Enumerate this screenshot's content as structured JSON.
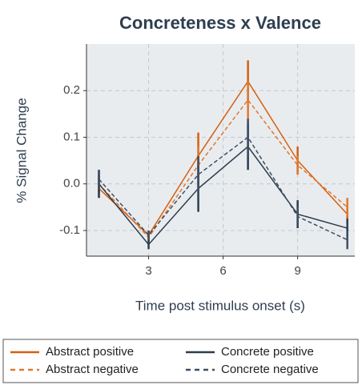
{
  "chart_data": {
    "type": "line",
    "title": "Concreteness x Valence",
    "x_label": "Time post stimulus onset (s)",
    "y_label": "% Signal Change",
    "x": [
      1,
      3,
      5,
      7,
      9,
      11
    ],
    "series": [
      {
        "name": "Abstract positive",
        "color": "#d4600f",
        "linestyle": "solid",
        "values": [
          -0.01,
          -0.11,
          0.06,
          0.22,
          0.05,
          -0.065
        ],
        "errors": [
          0.02,
          0.01,
          0.05,
          0.045,
          0.03,
          0.02
        ]
      },
      {
        "name": "Abstract negative",
        "color": "#e0782f",
        "linestyle": "dashed",
        "values": [
          0.0,
          -0.115,
          0.04,
          0.18,
          0.04,
          -0.05
        ],
        "errors": [
          0.02,
          0.01,
          0.04,
          0.04,
          0.02,
          0.02
        ]
      },
      {
        "name": "Concrete positive",
        "color": "#2c3e50",
        "linestyle": "solid",
        "values": [
          0.0,
          -0.13,
          -0.01,
          0.08,
          -0.065,
          -0.095
        ],
        "errors": [
          0.03,
          0.01,
          0.05,
          0.05,
          0.03,
          0.02
        ]
      },
      {
        "name": "Concrete negative",
        "color": "#3d4f63",
        "linestyle": "dashed",
        "values": [
          0.01,
          -0.11,
          0.02,
          0.1,
          -0.07,
          -0.12
        ],
        "errors": [
          0.02,
          0.01,
          0.04,
          0.04,
          0.02,
          0.02
        ]
      }
    ],
    "xlim": [
      0.5,
      11.3
    ],
    "ylim": [
      -0.155,
      0.3
    ],
    "xticks": [
      3,
      6,
      9
    ],
    "yticks": [
      {
        "value": -0.1,
        "label": "-0.1"
      },
      {
        "value": 0,
        "label": "0.0"
      },
      {
        "value": 0.1,
        "label": "0.1"
      },
      {
        "value": 0.2,
        "label": "0.2"
      }
    ],
    "grid": true,
    "legend_position": "bottom"
  }
}
